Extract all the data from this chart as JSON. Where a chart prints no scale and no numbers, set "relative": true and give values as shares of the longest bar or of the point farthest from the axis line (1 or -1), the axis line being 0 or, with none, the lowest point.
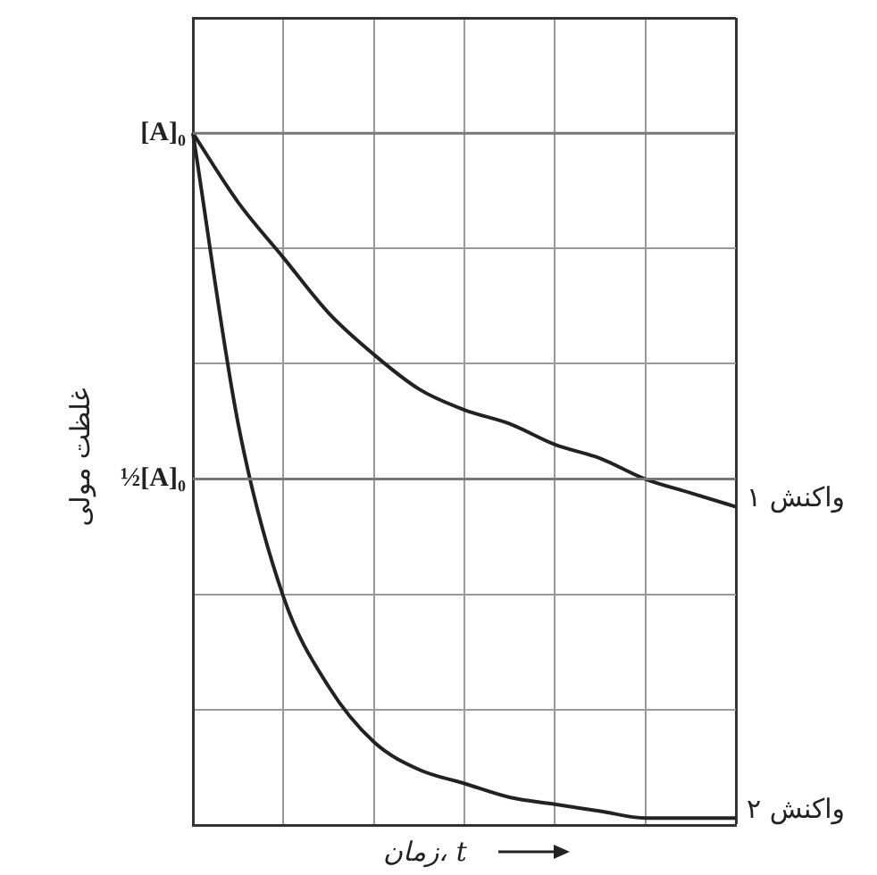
{
  "chart_data": {
    "type": "line",
    "relative": true,
    "xlabel": "زمان، t",
    "ylabel": "غلظت مولی",
    "categories": [
      null,
      null,
      null,
      null,
      null,
      null,
      null,
      null,
      null,
      null,
      null,
      null,
      null
    ],
    "series": [
      {
        "name": "واکنش ۱",
        "color": "#222222",
        "values": [
          1,
          0.9,
          0.82,
          0.74,
          0.68,
          0.63,
          0.6,
          0.58,
          0.55,
          0.53,
          0.5,
          0.48,
          0.46
        ]
      },
      {
        "name": "واکنش ۲",
        "color": "#222222",
        "values": [
          1,
          0.58,
          0.33,
          0.2,
          0.12,
          0.08,
          0.06,
          0.04,
          0.03,
          0.02,
          0.01,
          0.01,
          0.01
        ]
      }
    ],
    "ref_lines": [
      {
        "axis": "y",
        "value": 1,
        "label": "[A]₀",
        "color": "#777777"
      },
      {
        "axis": "y",
        "value": 0.5,
        "label": "½[A]₀",
        "color": "#777777"
      }
    ],
    "grid": true,
    "legend": false,
    "marker": "none",
    "line_style": "solid"
  }
}
